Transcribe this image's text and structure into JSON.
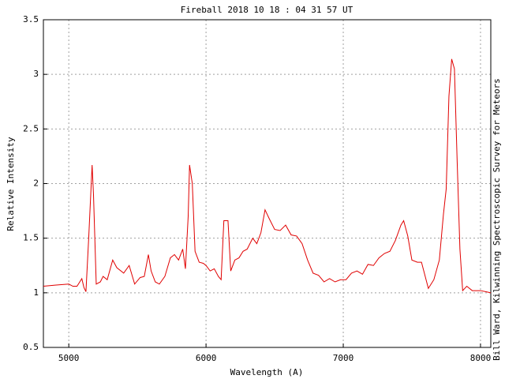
{
  "chart_data": {
    "type": "line",
    "title": "Fireball 2018 10 18 : 04 31 57 UT",
    "x_label": "Wavelength (A)",
    "y_label": "Relative Intensity",
    "side_note": "Bill Ward, Kilwinning Spectroscopic Survey for Meteors",
    "xlim": [
      4815,
      8075
    ],
    "ylim": [
      0.5,
      3.5
    ],
    "xticks": [
      5000,
      6000,
      7000,
      8000
    ],
    "yticks": [
      0.5,
      1,
      1.5,
      2,
      2.5,
      3,
      3.5
    ],
    "grid": true,
    "series": [
      {
        "color": "#e00000",
        "x": [
          4815,
          4900,
          5000,
          5030,
          5060,
          5095,
          5110,
          5125,
          5145,
          5170,
          5180,
          5200,
          5230,
          5250,
          5280,
          5320,
          5350,
          5400,
          5440,
          5480,
          5520,
          5550,
          5580,
          5600,
          5630,
          5660,
          5700,
          5740,
          5770,
          5800,
          5830,
          5850,
          5870,
          5880,
          5900,
          5920,
          5950,
          5980,
          6000,
          6030,
          6060,
          6090,
          6110,
          6130,
          6160,
          6180,
          6210,
          6240,
          6270,
          6300,
          6340,
          6370,
          6400,
          6430,
          6460,
          6500,
          6540,
          6580,
          6620,
          6660,
          6700,
          6740,
          6780,
          6820,
          6860,
          6900,
          6940,
          6980,
          7020,
          7060,
          7100,
          7140,
          7180,
          7220,
          7260,
          7300,
          7340,
          7380,
          7420,
          7440,
          7470,
          7500,
          7540,
          7570,
          7620,
          7660,
          7700,
          7730,
          7750,
          7770,
          7790,
          7810,
          7830,
          7850,
          7870,
          7900,
          7940,
          8000,
          8040,
          8075
        ],
        "values": [
          1.06,
          1.07,
          1.08,
          1.06,
          1.06,
          1.13,
          1.05,
          1.01,
          1.5,
          2.17,
          1.9,
          1.08,
          1.1,
          1.15,
          1.12,
          1.3,
          1.23,
          1.18,
          1.25,
          1.08,
          1.14,
          1.15,
          1.35,
          1.2,
          1.1,
          1.08,
          1.15,
          1.32,
          1.35,
          1.3,
          1.4,
          1.22,
          1.7,
          2.17,
          2.0,
          1.38,
          1.28,
          1.27,
          1.25,
          1.2,
          1.22,
          1.15,
          1.12,
          1.66,
          1.66,
          1.2,
          1.3,
          1.32,
          1.38,
          1.4,
          1.5,
          1.45,
          1.55,
          1.76,
          1.68,
          1.58,
          1.57,
          1.62,
          1.53,
          1.52,
          1.45,
          1.3,
          1.18,
          1.16,
          1.1,
          1.13,
          1.1,
          1.12,
          1.12,
          1.18,
          1.2,
          1.17,
          1.26,
          1.25,
          1.32,
          1.36,
          1.38,
          1.48,
          1.62,
          1.66,
          1.52,
          1.3,
          1.28,
          1.28,
          1.04,
          1.12,
          1.3,
          1.72,
          1.95,
          2.8,
          3.14,
          3.05,
          2.2,
          1.4,
          1.02,
          1.06,
          1.02,
          1.02,
          1.01,
          1.0
        ]
      }
    ]
  }
}
